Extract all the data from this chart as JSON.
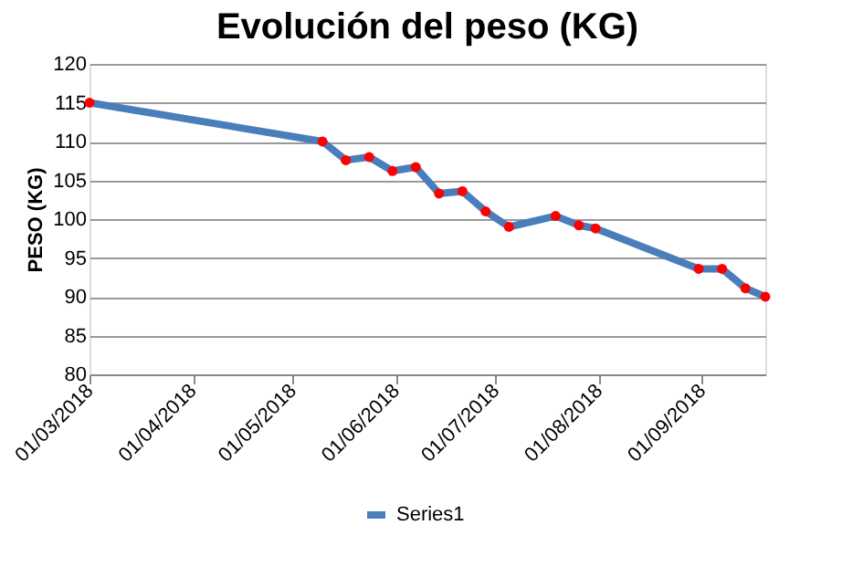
{
  "chart_data": {
    "type": "line",
    "title": "Evolución del peso (KG)",
    "ylabel": "PESO (KG)",
    "x": [
      "2018-03-01",
      "2018-05-10",
      "2018-05-17",
      "2018-05-24",
      "2018-05-31",
      "2018-06-07",
      "2018-06-14",
      "2018-06-21",
      "2018-06-28",
      "2018-07-05",
      "2018-07-19",
      "2018-07-26",
      "2018-07-31",
      "2018-08-31",
      "2018-09-07",
      "2018-09-14",
      "2018-09-20"
    ],
    "series": [
      {
        "name": "Series1",
        "color": "#4a7ebb",
        "colors": [
          "#ff0000",
          "#ff0000",
          "#ff0000",
          "#ff0000",
          "#ff0000",
          "#ff0000",
          "#ff0000",
          "#ff0000",
          "#ff0000",
          "#ff0000",
          "#ff0000",
          "#ff0000",
          "#ff0000",
          "#ff0000",
          "#ff0000",
          "#ff0000",
          "#ff0000"
        ],
        "values": [
          115,
          110,
          107.6,
          108,
          106.2,
          106.7,
          103.3,
          103.6,
          101,
          99,
          100.4,
          99.2,
          98.8,
          93.6,
          93.6,
          91.1,
          90
        ]
      }
    ],
    "xlim": [
      "2018-03-01",
      "2018-09-20"
    ],
    "xticks": [
      {
        "value": "2018-03-01",
        "label": "01/03/2018"
      },
      {
        "value": "2018-04-01",
        "label": "01/04/2018"
      },
      {
        "value": "2018-05-01",
        "label": "01/05/2018"
      },
      {
        "value": "2018-06-01",
        "label": "01/06/2018"
      },
      {
        "value": "2018-07-01",
        "label": "01/07/2018"
      },
      {
        "value": "2018-08-01",
        "label": "01/08/2018"
      },
      {
        "value": "2018-09-01",
        "label": "01/09/2018"
      }
    ],
    "ylim": [
      80,
      120
    ],
    "yticks": [
      80,
      85,
      90,
      95,
      100,
      105,
      110,
      115,
      120
    ],
    "grid": "y",
    "legend": "bottom",
    "marker": "circle",
    "line_style": "solid"
  }
}
